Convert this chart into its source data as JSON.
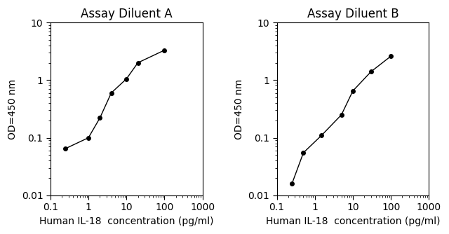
{
  "title_A": "Assay Diluent A",
  "title_B": "Assay Diluent B",
  "xlabel": "Human IL-18  concentration (pg/ml)",
  "ylabel": "OD=450 nm",
  "xlim": [
    0.15,
    1000
  ],
  "ylim": [
    0.01,
    10
  ],
  "x_A": [
    0.25,
    1.0,
    2.0,
    4.0,
    10.0,
    20.0,
    100.0
  ],
  "y_A": [
    0.065,
    0.1,
    0.22,
    0.6,
    1.05,
    2.0,
    3.3
  ],
  "x_B": [
    0.25,
    0.5,
    1.5,
    5.0,
    10.0,
    30.0,
    100.0
  ],
  "y_B": [
    0.016,
    0.055,
    0.11,
    0.25,
    0.65,
    1.4,
    2.6
  ],
  "line_color": "#000000",
  "marker": "o",
  "markersize": 4,
  "title_fontsize": 12,
  "label_fontsize": 10,
  "tick_fontsize": 10,
  "background_color": "#ffffff",
  "x_ticks": [
    0.1,
    1,
    10,
    100,
    1000
  ],
  "y_ticks": [
    0.01,
    0.1,
    1,
    10
  ],
  "x_tick_labels": [
    "0.1",
    "1",
    "10",
    "100",
    "1000"
  ],
  "y_tick_labels": [
    "0.01",
    "0.1",
    "1",
    "10"
  ]
}
